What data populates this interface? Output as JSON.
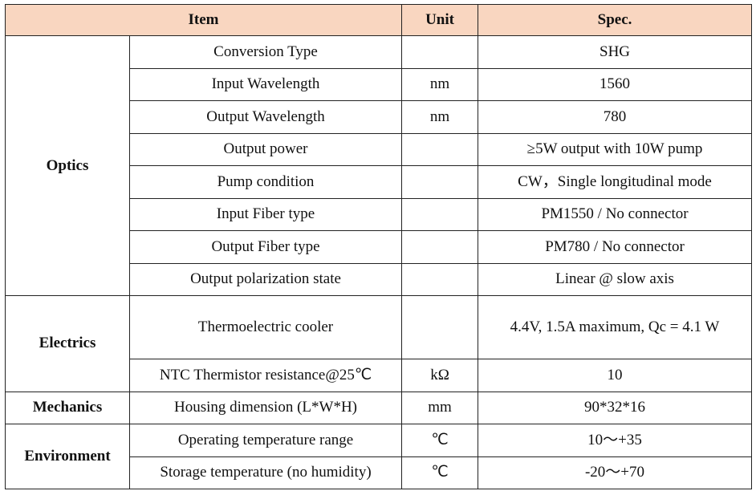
{
  "headers": {
    "item": "Item",
    "unit": "Unit",
    "spec": "Spec."
  },
  "groups": {
    "optics": "Optics",
    "electrics": "Electrics",
    "mechanics": "Mechanics",
    "environment": "Environment"
  },
  "rows": [
    {
      "item": "Conversion Type",
      "unit": "",
      "spec": "SHG"
    },
    {
      "item": "Input Wavelength",
      "unit": "nm",
      "spec": "1560"
    },
    {
      "item": "Output Wavelength",
      "unit": "nm",
      "spec": "780"
    },
    {
      "item": "Output power",
      "unit": "",
      "spec": "≥5W output with 10W pump"
    },
    {
      "item": "Pump condition",
      "unit": "",
      "spec": "CW，Single longitudinal mode"
    },
    {
      "item": "Input Fiber type",
      "unit": "",
      "spec": "PM1550 / No connector"
    },
    {
      "item": "Output Fiber type",
      "unit": "",
      "spec": "PM780 / No connector"
    },
    {
      "item": "Output polarization state",
      "unit": "",
      "spec": "Linear @ slow axis"
    },
    {
      "item": "Thermoelectric cooler",
      "unit": "",
      "spec": "4.4V, 1.5A maximum, Qc = 4.1 W"
    },
    {
      "item": "NTC Thermistor resistance@25℃",
      "unit": "kΩ",
      "spec": "10"
    },
    {
      "item": "Housing dimension (L*W*H)",
      "unit": "mm",
      "spec": "90*32*16"
    },
    {
      "item": "Operating temperature range",
      "unit": "℃",
      "spec": "10～+35"
    },
    {
      "item": "Storage temperature (no humidity)",
      "unit": "℃",
      "spec": "-20～+70"
    }
  ],
  "colors": {
    "header_bg": "#f9d6c0",
    "border": "#222222"
  }
}
